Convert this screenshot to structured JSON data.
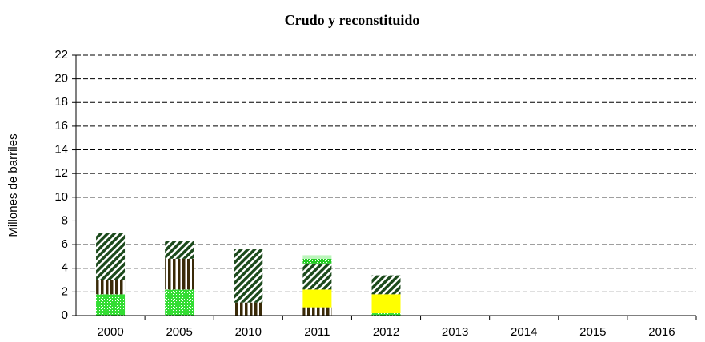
{
  "chart_data": {
    "type": "stacked_bar",
    "title": "Crudo y reconstituido",
    "y_label": "Millones de barriles",
    "categories": [
      "2000",
      "2005",
      "2010",
      "2011",
      "2012",
      "2013",
      "2014",
      "2015",
      "2016"
    ],
    "series": [
      {
        "color": "#33dd33",
        "pattern": "dots",
        "values": [
          1.8,
          2.2,
          null,
          null,
          0.2,
          null,
          null,
          null,
          null
        ]
      },
      {
        "color": "#3a2a08",
        "pattern": "vstripes",
        "values": [
          1.2,
          2.6,
          1.1,
          0.7,
          null,
          null,
          null,
          null,
          null
        ]
      },
      {
        "color": "#ffff00",
        "pattern": "solid",
        "values": [
          null,
          null,
          null,
          1.5,
          1.6,
          null,
          null,
          null,
          null
        ]
      },
      {
        "color": "#1c4a1c",
        "pattern": "hatch",
        "values": [
          4.0,
          1.5,
          4.5,
          2.2,
          1.6,
          null,
          null,
          null,
          null
        ]
      },
      {
        "color": "#22cc22",
        "pattern": "dots",
        "values": [
          null,
          null,
          null,
          0.4,
          null,
          null,
          null,
          null,
          null
        ]
      },
      {
        "color": "#bbf5bb",
        "pattern": "solid",
        "values": [
          null,
          null,
          null,
          0.3,
          null,
          null,
          null,
          null,
          null
        ]
      }
    ],
    "ylim": [
      0,
      22
    ],
    "yticks": [
      0,
      2,
      4,
      6,
      8,
      10,
      12,
      14,
      16,
      18,
      20,
      22
    ],
    "grid": true
  }
}
